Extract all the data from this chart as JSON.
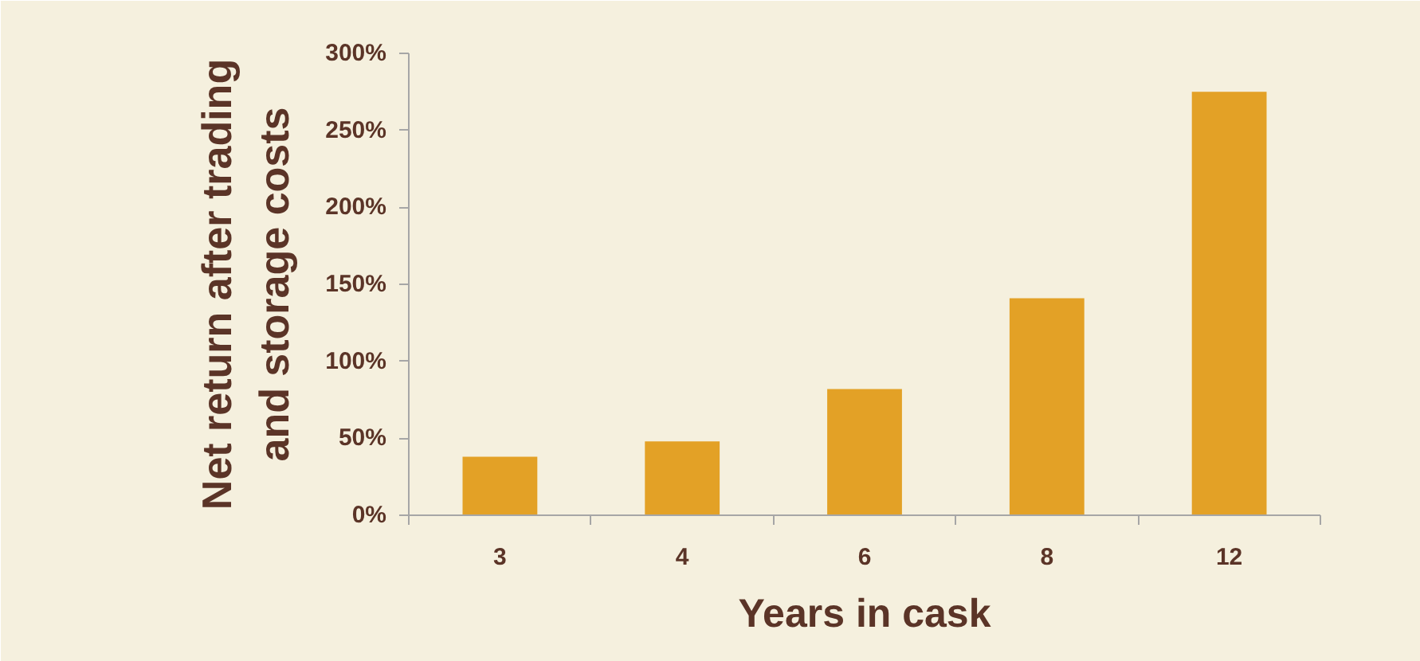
{
  "chart_data": {
    "type": "bar",
    "categories": [
      "3",
      "4",
      "6",
      "8",
      "12"
    ],
    "values": [
      38,
      48,
      82,
      141,
      275
    ],
    "color": "#e3a126",
    "xlabel": "Years in cask",
    "ylabel": "Net return after trading\nand storage costs",
    "ylim": [
      0,
      300
    ],
    "yticks": [
      {
        "value": 0,
        "label": "0%"
      },
      {
        "value": 50,
        "label": "50%"
      },
      {
        "value": 100,
        "label": "100%"
      },
      {
        "value": 150,
        "label": "150%"
      },
      {
        "value": 200,
        "label": "200%"
      },
      {
        "value": 250,
        "label": "250%"
      },
      {
        "value": 300,
        "label": "300%"
      }
    ]
  }
}
